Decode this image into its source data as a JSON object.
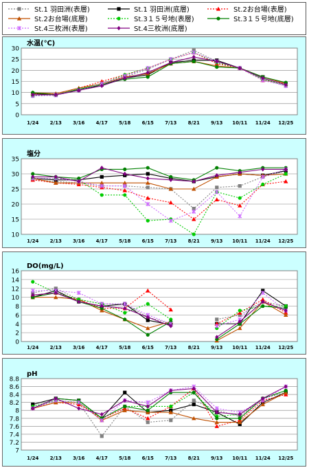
{
  "legend": [
    {
      "name": "St.1 羽田洲(表層)",
      "color": "#808080",
      "dash": "2,2",
      "marker": "square",
      "hollow": false
    },
    {
      "name": "St.1 羽田洲(底層)",
      "color": "#000000",
      "dash": "",
      "marker": "square",
      "hollow": false
    },
    {
      "name": "St.2お台場(表層)",
      "color": "#ff0000",
      "dash": "2,2",
      "marker": "triangle",
      "hollow": false
    },
    {
      "name": "St.2お台場(底層)",
      "color": "#c05000",
      "dash": "",
      "marker": "triangle",
      "hollow": false
    },
    {
      "name": "St.3１５号地(表層)",
      "color": "#00cc00",
      "dash": "2,2",
      "marker": "circle",
      "hollow": false
    },
    {
      "name": "St.3１５号地(底層)",
      "color": "#008000",
      "dash": "",
      "marker": "circle",
      "hollow": false
    },
    {
      "name": "St.4三枚洲(表層)",
      "color": "#cc66ff",
      "dash": "2,2",
      "marker": "star",
      "hollow": false
    },
    {
      "name": "St.4三枚洲(底層)",
      "color": "#800080",
      "dash": "",
      "marker": "diamond",
      "hollow": false
    }
  ],
  "chart_data": [
    {
      "type": "line",
      "title": "水温(℃)",
      "categories": [
        "1/24",
        "2/13",
        "3/16",
        "4/17",
        "5/18",
        "6/15",
        "7/13",
        "8/21",
        "9/13",
        "10/11",
        "11/24",
        "12/25"
      ],
      "ylim": [
        0,
        30
      ],
      "yticks": [
        0,
        5,
        10,
        15,
        20,
        25,
        30
      ],
      "grid": true,
      "series": [
        {
          "name": "St.1 羽田洲(表層)",
          "values": [
            8.5,
            8.8,
            11.0,
            13.5,
            17.0,
            20.5,
            25.0,
            29.0,
            24.0,
            21.0,
            16.0,
            13.0
          ]
        },
        {
          "name": "St.1 羽田洲(底層)",
          "values": [
            9.5,
            9.0,
            11.0,
            13.5,
            16.5,
            18.0,
            23.5,
            24.5,
            24.5,
            21.0,
            17.0,
            14.0
          ]
        },
        {
          "name": "St.2お台場(表層)",
          "values": [
            9.5,
            9.5,
            12.0,
            15.0,
            18.0,
            21.0,
            25.0,
            28.0,
            23.0,
            21.0,
            15.5,
            14.0
          ]
        },
        {
          "name": "St.2お台場(底層)",
          "values": [
            10.0,
            9.5,
            12.0,
            14.0,
            17.0,
            18.5,
            23.0,
            24.0,
            22.0,
            21.0,
            17.0,
            14.0
          ]
        },
        {
          "name": "St.3１５号地(表層)",
          "values": [
            8.5,
            8.8,
            11.5,
            14.0,
            18.0,
            21.0,
            25.0,
            28.0,
            23.5,
            21.0,
            16.0,
            13.5
          ]
        },
        {
          "name": "St.3１５号地(底層)",
          "values": [
            10.0,
            9.0,
            11.5,
            13.5,
            16.0,
            17.0,
            23.0,
            24.0,
            21.5,
            21.0,
            17.0,
            14.5
          ]
        },
        {
          "name": "St.4三枚洲(表層)",
          "values": [
            8.5,
            8.8,
            11.0,
            14.0,
            17.5,
            21.0,
            25.0,
            28.0,
            24.0,
            21.0,
            15.5,
            13.0
          ]
        },
        {
          "name": "St.4三枚洲(底層)",
          "values": [
            9.0,
            9.0,
            11.0,
            13.0,
            16.5,
            19.0,
            23.5,
            26.0,
            24.0,
            21.0,
            16.5,
            13.5
          ]
        }
      ]
    },
    {
      "type": "line",
      "title": "塩分",
      "categories": [
        "1/24",
        "2/13",
        "3/16",
        "4/17",
        "5/18",
        "6/15",
        "7/13",
        "8/21",
        "9/13",
        "10/11",
        "11/24",
        "12/25"
      ],
      "ylim": [
        10,
        35
      ],
      "yticks": [
        10,
        15,
        20,
        25,
        30,
        35
      ],
      "grid": true,
      "series": [
        {
          "name": "St.1 羽田洲(表層)",
          "values": [
            28.0,
            27.5,
            27.0,
            26.0,
            26.0,
            25.5,
            25.0,
            18.5,
            25.5,
            26.0,
            29.0,
            31.0
          ]
        },
        {
          "name": "St.1 羽田洲(底層)",
          "values": [
            28.5,
            28.0,
            28.0,
            29.0,
            29.5,
            30.0,
            28.5,
            27.5,
            29.0,
            30.0,
            29.5,
            31.0
          ]
        },
        {
          "name": "St.2お台場(表層)",
          "values": [
            28.0,
            27.0,
            26.5,
            25.5,
            24.5,
            22.0,
            20.5,
            15.0,
            21.5,
            19.5,
            26.5,
            27.5
          ]
        },
        {
          "name": "St.2お台場(底層)",
          "values": [
            28.5,
            27.0,
            27.0,
            27.0,
            27.0,
            27.0,
            25.0,
            25.0,
            29.0,
            30.0,
            29.5,
            30.0
          ]
        },
        {
          "name": "St.3１５号地(表層)",
          "values": [
            28.5,
            28.5,
            28.0,
            23.0,
            23.0,
            14.5,
            15.0,
            10.0,
            24.0,
            22.0,
            26.5,
            30.0
          ]
        },
        {
          "name": "St.3１５号地(底層)",
          "values": [
            30.0,
            29.0,
            28.5,
            31.5,
            31.5,
            32.0,
            29.0,
            28.0,
            32.0,
            31.0,
            32.0,
            32.0
          ]
        },
        {
          "name": "St.4三枚洲(表層)",
          "values": [
            28.5,
            28.5,
            27.5,
            26.0,
            26.0,
            20.0,
            14.5,
            17.5,
            24.0,
            16.0,
            29.0,
            31.5
          ]
        },
        {
          "name": "St.4三枚洲(底層)",
          "values": [
            29.0,
            29.0,
            27.5,
            32.0,
            30.0,
            28.5,
            28.0,
            27.5,
            29.5,
            30.5,
            31.5,
            31.5
          ]
        }
      ]
    },
    {
      "type": "line",
      "title": "DO(mg/L)",
      "categories": [
        "1/24",
        "2/13",
        "3/16",
        "4/17",
        "5/18",
        "6/15",
        "7/13",
        "8/21",
        "9/13",
        "10/11",
        "11/24",
        "12/25"
      ],
      "ylim": [
        0,
        16
      ],
      "yticks": [
        0,
        2,
        4,
        6,
        8,
        10,
        12,
        14,
        16
      ],
      "grid": true,
      "series": [
        {
          "name": "St.1 羽田洲(表層)",
          "values": [
            11.0,
            12.0,
            9.5,
            8.5,
            8.5,
            5.5,
            4.0,
            null,
            5.0,
            6.0,
            9.0,
            8.0
          ]
        },
        {
          "name": "St.1 羽田洲(底層)",
          "values": [
            10.0,
            11.5,
            9.0,
            8.0,
            8.5,
            4.8,
            3.8,
            null,
            4.0,
            4.0,
            11.5,
            8.0
          ]
        },
        {
          "name": "St.2お台場(表層)",
          "values": [
            10.5,
            11.0,
            9.5,
            7.5,
            7.5,
            11.5,
            7.2,
            null,
            4.0,
            6.5,
            9.5,
            6.5
          ]
        },
        {
          "name": "St.2お台場(底層)",
          "values": [
            10.0,
            10.0,
            9.5,
            7.0,
            5.0,
            3.0,
            4.5,
            null,
            0.2,
            3.0,
            9.0,
            6.0
          ]
        },
        {
          "name": "St.3１５号地(表層)",
          "values": [
            13.5,
            11.0,
            9.5,
            8.5,
            6.5,
            8.5,
            5.0,
            null,
            3.0,
            7.0,
            8.0,
            8.0
          ]
        },
        {
          "name": "St.3１５号地(底層)",
          "values": [
            10.0,
            11.0,
            9.0,
            7.5,
            5.0,
            1.5,
            4.5,
            null,
            0.5,
            4.0,
            8.0,
            7.5
          ]
        },
        {
          "name": "St.4三枚洲(表層)",
          "values": [
            11.5,
            11.5,
            11.0,
            8.5,
            8.5,
            6.0,
            4.0,
            null,
            3.5,
            5.0,
            11.0,
            7.0
          ]
        },
        {
          "name": "St.4三枚洲(底層)",
          "values": [
            10.5,
            11.0,
            9.0,
            8.0,
            7.5,
            5.5,
            3.5,
            null,
            1.0,
            4.5,
            9.0,
            7.0
          ]
        }
      ]
    },
    {
      "type": "line",
      "title": "pH",
      "categories": [
        "1/24",
        "2/13",
        "3/16",
        "4/17",
        "5/18",
        "6/15",
        "7/13",
        "8/21",
        "9/13",
        "10/11",
        "11/24",
        "12/25"
      ],
      "ylim": [
        7,
        8.8
      ],
      "yticks": [
        7,
        7.2,
        7.4,
        7.6,
        7.8,
        8,
        8.2,
        8.4,
        8.6,
        8.8
      ],
      "ytick_labels": [
        "7",
        "7.2",
        "7.4",
        "7.6",
        "7.8",
        "8",
        "8.2",
        "8.4",
        "8.6",
        "8.8"
      ],
      "grid": true,
      "series": [
        {
          "name": "St.1 羽田洲(表層)",
          "values": [
            8.05,
            8.25,
            8.2,
            7.35,
            8.1,
            7.7,
            7.75,
            8.25,
            8.0,
            7.85,
            8.3,
            8.45
          ]
        },
        {
          "name": "St.1 羽田洲(底層)",
          "values": [
            8.15,
            8.3,
            8.25,
            7.8,
            8.45,
            7.95,
            8.0,
            8.15,
            7.95,
            7.65,
            8.2,
            8.45
          ]
        },
        {
          "name": "St.2お台場(表層)",
          "values": [
            8.05,
            8.2,
            8.15,
            7.8,
            8.05,
            7.8,
            8.1,
            8.55,
            7.6,
            7.75,
            8.25,
            8.4
          ]
        },
        {
          "name": "St.2お台場(底層)",
          "values": [
            8.05,
            8.2,
            8.2,
            7.75,
            8.0,
            7.95,
            7.95,
            7.8,
            7.7,
            7.7,
            8.15,
            8.45
          ]
        },
        {
          "name": "St.3１５号地(表層)",
          "values": [
            8.1,
            8.25,
            8.2,
            7.8,
            8.1,
            8.1,
            8.1,
            8.45,
            7.85,
            7.9,
            8.3,
            8.5
          ]
        },
        {
          "name": "St.3１５号地(底層)",
          "values": [
            8.05,
            8.3,
            8.25,
            7.8,
            8.1,
            8.0,
            8.45,
            8.45,
            7.8,
            7.8,
            8.3,
            8.5
          ]
        },
        {
          "name": "St.4三枚洲(表層)",
          "values": [
            8.05,
            8.25,
            8.2,
            7.75,
            8.25,
            8.2,
            8.5,
            8.6,
            8.05,
            7.95,
            8.25,
            8.6
          ]
        },
        {
          "name": "St.4三枚洲(底層)",
          "values": [
            8.05,
            8.3,
            8.05,
            7.9,
            8.25,
            8.1,
            8.5,
            8.55,
            7.95,
            7.9,
            8.3,
            8.6
          ]
        }
      ]
    }
  ]
}
